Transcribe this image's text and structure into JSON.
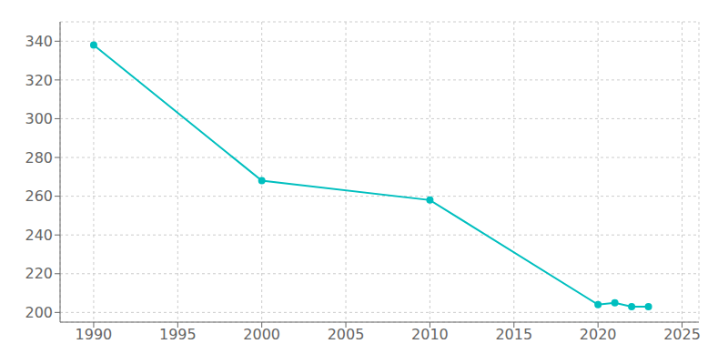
{
  "chart_data": {
    "type": "line",
    "x": [
      1990,
      2000,
      2010,
      2020,
      2021,
      2022,
      2023
    ],
    "values": [
      338,
      268,
      258,
      204,
      205,
      203,
      203
    ],
    "color": "#00BFBF",
    "marker": "circle",
    "xlim": [
      1988,
      2026
    ],
    "ylim": [
      195,
      350
    ],
    "xticks": [
      1990,
      1995,
      2000,
      2005,
      2010,
      2015,
      2020,
      2025
    ],
    "yticks": [
      200,
      220,
      240,
      260,
      280,
      300,
      320,
      340
    ],
    "grid": true
  }
}
